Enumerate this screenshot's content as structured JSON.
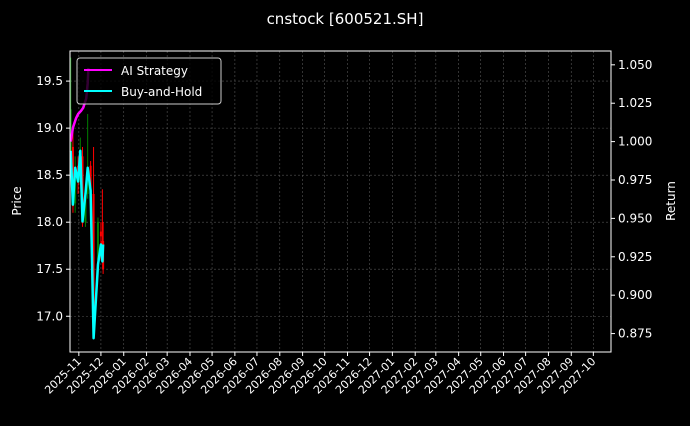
{
  "chart_data": {
    "type": "line",
    "title": "cnstock [600521.SH]",
    "ylabel": "Price",
    "y2label": "Return",
    "ylim": [
      16.62,
      19.82
    ],
    "y2lim": [
      0.863,
      1.059
    ],
    "xlim": [
      "2025-10-20",
      "2027-10-25"
    ],
    "grid": true,
    "legend_position": "top-left",
    "colors": {
      "background": "#000000",
      "ai": "#ff00ff",
      "bh": "#00ffff",
      "up": "#008000",
      "down": "#ff0000",
      "grid": "#555555"
    },
    "x_ticks": [
      "2025-11",
      "2025-12",
      "2026-01",
      "2026-02",
      "2026-03",
      "2026-04",
      "2026-05",
      "2026-06",
      "2026-07",
      "2026-08",
      "2026-09",
      "2026-10",
      "2026-11",
      "2026-12",
      "2027-01",
      "2027-02",
      "2027-03",
      "2027-04",
      "2027-05",
      "2027-06",
      "2027-07",
      "2027-08",
      "2027-09",
      "2027-10"
    ],
    "y_ticks": [
      "17.0",
      "17.5",
      "18.0",
      "18.5",
      "19.0",
      "19.5"
    ],
    "y2_ticks": [
      "0.875",
      "0.900",
      "0.925",
      "0.950",
      "0.975",
      "1.000",
      "1.025",
      "1.050"
    ],
    "candles": [
      {
        "date": "2025-10-21",
        "open": 18.75,
        "high": 19.75,
        "low": 18.6,
        "close": 19.2
      },
      {
        "date": "2025-10-24",
        "open": 18.8,
        "high": 19.0,
        "low": 18.1,
        "close": 18.17
      },
      {
        "date": "2025-10-27",
        "open": 18.2,
        "high": 18.7,
        "low": 18.1,
        "close": 18.57
      },
      {
        "date": "2025-10-31",
        "open": 18.6,
        "high": 18.7,
        "low": 18.3,
        "close": 18.42
      },
      {
        "date": "2025-11-03",
        "open": 18.45,
        "high": 18.9,
        "low": 18.4,
        "close": 18.75
      },
      {
        "date": "2025-11-06",
        "open": 18.7,
        "high": 18.8,
        "low": 17.95,
        "close": 17.99
      },
      {
        "date": "2025-11-10",
        "open": 18.0,
        "high": 18.4,
        "low": 17.95,
        "close": 18.28
      },
      {
        "date": "2025-11-13",
        "open": 18.3,
        "high": 19.15,
        "low": 18.25,
        "close": 18.57
      },
      {
        "date": "2025-11-17",
        "open": 18.6,
        "high": 18.65,
        "low": 18.2,
        "close": 18.32
      },
      {
        "date": "2025-11-21",
        "open": 18.3,
        "high": 18.8,
        "low": 16.8,
        "close": 16.9
      },
      {
        "date": "2025-11-27",
        "open": 17.6,
        "high": 18.05,
        "low": 17.5,
        "close": 18.0
      },
      {
        "date": "2025-12-01",
        "open": 17.9,
        "high": 18.0,
        "low": 17.6,
        "close": 17.85
      },
      {
        "date": "2025-12-03",
        "open": 17.8,
        "high": 18.35,
        "low": 17.6,
        "close": 17.7
      },
      {
        "date": "2025-12-04",
        "open": 17.8,
        "high": 18.0,
        "low": 17.45,
        "close": 17.5
      }
    ],
    "series": [
      {
        "name": "AI Strategy",
        "axis": "right",
        "x": [
          "2025-10-21",
          "2025-10-24",
          "2025-10-28",
          "2025-10-31",
          "2025-11-04",
          "2025-11-07",
          "2025-11-11",
          "2025-11-13",
          "2025-11-14"
        ],
        "values": [
          1.0,
          1.009,
          1.015,
          1.018,
          1.02,
          1.022,
          1.028,
          1.038,
          1.048
        ]
      },
      {
        "name": "Buy-and-Hold",
        "axis": "right",
        "x": [
          "2025-10-21",
          "2025-10-24",
          "2025-10-27",
          "2025-10-31",
          "2025-11-03",
          "2025-11-06",
          "2025-11-10",
          "2025-11-13",
          "2025-11-17",
          "2025-11-21",
          "2025-11-27",
          "2025-12-01",
          "2025-12-03",
          "2025-12-04"
        ],
        "values": [
          0.994,
          0.959,
          0.983,
          0.974,
          0.994,
          0.948,
          0.966,
          0.983,
          0.968,
          0.872,
          0.92,
          0.933,
          0.922,
          0.933
        ]
      }
    ]
  }
}
